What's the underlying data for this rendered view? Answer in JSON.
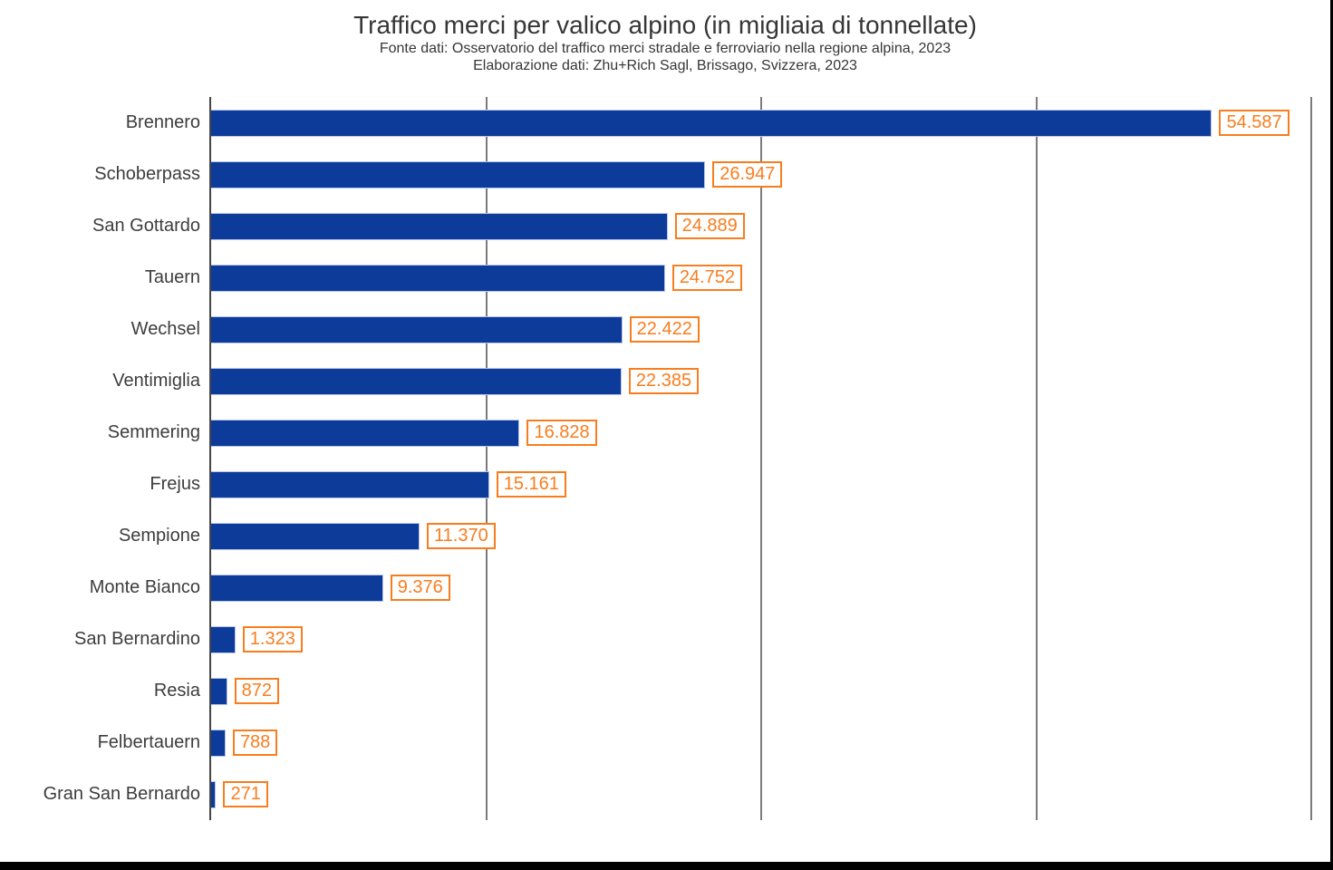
{
  "header": {
    "title": "Traffico merci per valico alpino (in migliaia di tonnellate)",
    "subtitle_line1": "Fonte dati: Osservatorio del traffico merci stradale e ferroviario nella regione alpina, 2023",
    "subtitle_line2": "Elaborazione dati: Zhu+Rich Sagl, Brissago, Svizzera, 2023"
  },
  "chart_data": {
    "type": "bar",
    "orientation": "horizontal",
    "title": "Traffico merci per valico alpino (in migliaia di tonnellate)",
    "subtitle": [
      "Fonte dati: Osservatorio del traffico merci stradale e ferroviario nella regione alpina, 2023",
      "Elaborazione dati: Zhu+Rich Sagl, Brissago, Svizzera, 2023"
    ],
    "categories": [
      "Brennero",
      "Schoberpass",
      "San Gottardo",
      "Tauern",
      "Wechsel",
      "Ventimiglia",
      "Semmering",
      "Frejus",
      "Sempione",
      "Monte Bianco",
      "San Bernardino",
      "Resia",
      "Felbertauern",
      "Gran San Bernardo"
    ],
    "values": [
      54587,
      26947,
      24889,
      24752,
      22422,
      22385,
      16828,
      15161,
      11370,
      9376,
      1323,
      872,
      788,
      271
    ],
    "value_labels": [
      "54.587",
      "26.947",
      "24.889",
      "24.752",
      "22.422",
      "22.385",
      "16.828",
      "15.161",
      "11.370",
      "9.376",
      "1.323",
      "872",
      "788",
      "271"
    ],
    "xlabel": "",
    "ylabel": "",
    "xlim": [
      0,
      60000
    ],
    "gridlines_x": [
      15000,
      30000,
      45000,
      60000
    ],
    "grid": true,
    "legend": false,
    "unit": "migliaia di tonnellate",
    "colors": {
      "bar_fill": "#0d3b99",
      "bar_edge": "#b9c5ea",
      "value_text": "#f87d1e",
      "value_box_border": "#f87d1e",
      "value_box_bg": "#ffffff",
      "gridline": "#7b7b7b",
      "axis_line": "#454545",
      "category_text": "#3d3d3d",
      "title_text": "#363636",
      "frame_edge": "#000000"
    }
  }
}
